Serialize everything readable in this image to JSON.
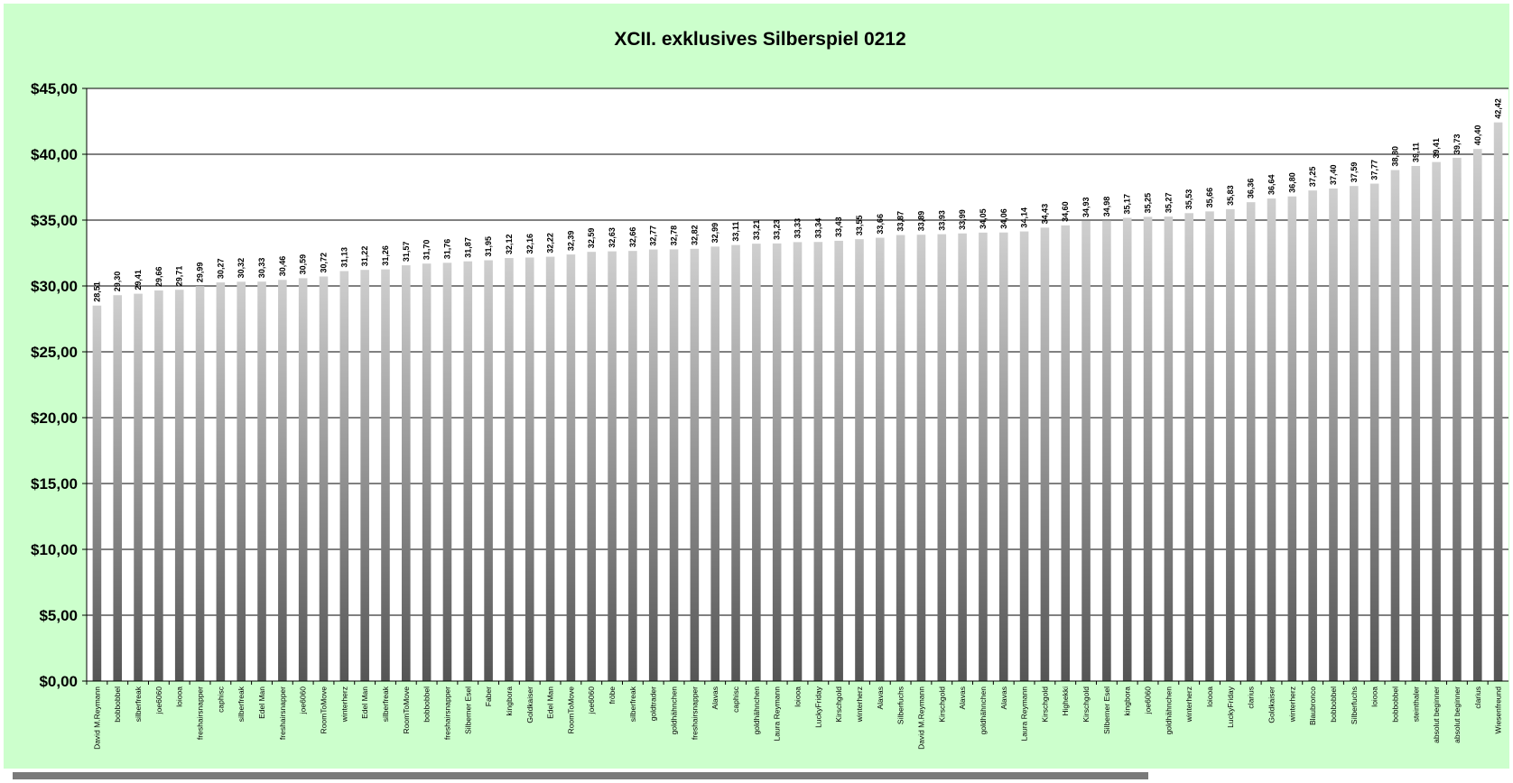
{
  "chart_data": {
    "type": "bar",
    "title": "XCII. exklusives Silberspiel 0212",
    "xlabel": "",
    "ylabel": "",
    "ylim": [
      0,
      45
    ],
    "y_ticks": [
      0,
      5,
      10,
      15,
      20,
      25,
      30,
      35,
      40,
      45
    ],
    "y_tick_labels": [
      "$0,00",
      "$5,00",
      "$10,00",
      "$15,00",
      "$20,00",
      "$25,00",
      "$30,00",
      "$35,00",
      "$40,00",
      "$45,00"
    ],
    "grid": true,
    "legend": "none",
    "colors": {
      "background": "#ccffcc",
      "plot": "#ffffff",
      "bar_light": "#c8c8c8",
      "bar_dark": "#5a5a5a",
      "grid": "#000000"
    },
    "categories": [
      "David M.Reymann",
      "bobbobbel",
      "silberfreak",
      "joe6060",
      "loiooa",
      "freshairsnapper",
      "caphisc",
      "silberfreak",
      "Edel Man",
      "freshairsnapper",
      "joe6060",
      "RoomToMove",
      "winterherz",
      "Edel Man",
      "silberfreak",
      "RoomToMove",
      "bobbobbel",
      "freshairsnapper",
      "Silberner Esel",
      "Faber",
      "kingbora",
      "Goldkaiser",
      "Edel Man",
      "RoomToMove",
      "joe6060",
      "fröbe",
      "silberfreak",
      "goldtrader",
      "goldhähnchen",
      "freshairsnapper",
      "Alavas",
      "caphisc",
      "goldhähnchen",
      "Laura Reymann",
      "loiooa",
      "LuckyFriday",
      "Kirschgold",
      "winterherz",
      "Alavas",
      "Silberfuchs",
      "David M.Reymann",
      "Kirschgold",
      "Alavas",
      "goldhähnchen",
      "Alavas",
      "Laura Reymann",
      "Kirschgold",
      "Highekki",
      "Kirschgold",
      "Silberner Esel",
      "kingbora",
      "joe6060",
      "goldhähnchen",
      "winterherz",
      "loiooa",
      "LuckyFriday",
      "clarius",
      "Goldkaiser",
      "winterherz",
      "Blaubronco",
      "bobbobbel",
      "Silberfuchs",
      "loiooa",
      "bobbobbel",
      "steinthaler",
      "absolut beginner",
      "absolut beginner",
      "clarius",
      "Wiesenfreund"
    ],
    "values": [
      28.51,
      29.3,
      29.41,
      29.66,
      29.71,
      29.99,
      30.27,
      30.32,
      30.33,
      30.46,
      30.59,
      30.72,
      31.13,
      31.22,
      31.26,
      31.57,
      31.7,
      31.76,
      31.87,
      31.95,
      32.12,
      32.16,
      32.22,
      32.39,
      32.59,
      32.63,
      32.66,
      32.77,
      32.78,
      32.82,
      32.99,
      33.11,
      33.21,
      33.23,
      33.33,
      33.34,
      33.43,
      33.55,
      33.66,
      33.87,
      33.89,
      33.93,
      33.99,
      34.05,
      34.06,
      34.14,
      34.43,
      34.6,
      34.93,
      34.98,
      35.17,
      35.25,
      35.27,
      35.53,
      35.66,
      35.83,
      36.36,
      36.64,
      36.8,
      37.25,
      37.4,
      37.59,
      37.77,
      38.8,
      39.11,
      39.41,
      39.73,
      40.4,
      42.42
    ],
    "value_labels": [
      "28,51",
      "29,30",
      "29,41",
      "29,66",
      "29,71",
      "29,99",
      "30,27",
      "30,32",
      "30,33",
      "30,46",
      "30,59",
      "30,72",
      "31,13",
      "31,22",
      "31,26",
      "31,57",
      "31,70",
      "31,76",
      "31,87",
      "31,95",
      "32,12",
      "32,16",
      "32,22",
      "32,39",
      "32,59",
      "32,63",
      "32,66",
      "32,77",
      "32,78",
      "32,82",
      "32,99",
      "33,11",
      "33,21",
      "33,23",
      "33,33",
      "33,34",
      "33,43",
      "33,55",
      "33,66",
      "33,87",
      "33,89",
      "33,93",
      "33,99",
      "34,05",
      "34,06",
      "34,14",
      "34,43",
      "34,60",
      "34,93",
      "34,98",
      "35,17",
      "35,25",
      "35,27",
      "35,53",
      "35,66",
      "35,83",
      "36,36",
      "36,64",
      "36,80",
      "37,25",
      "37,40",
      "37,59",
      "37,77",
      "38,80",
      "39,11",
      "39,41",
      "39,73",
      "40,40",
      "42,42"
    ]
  }
}
